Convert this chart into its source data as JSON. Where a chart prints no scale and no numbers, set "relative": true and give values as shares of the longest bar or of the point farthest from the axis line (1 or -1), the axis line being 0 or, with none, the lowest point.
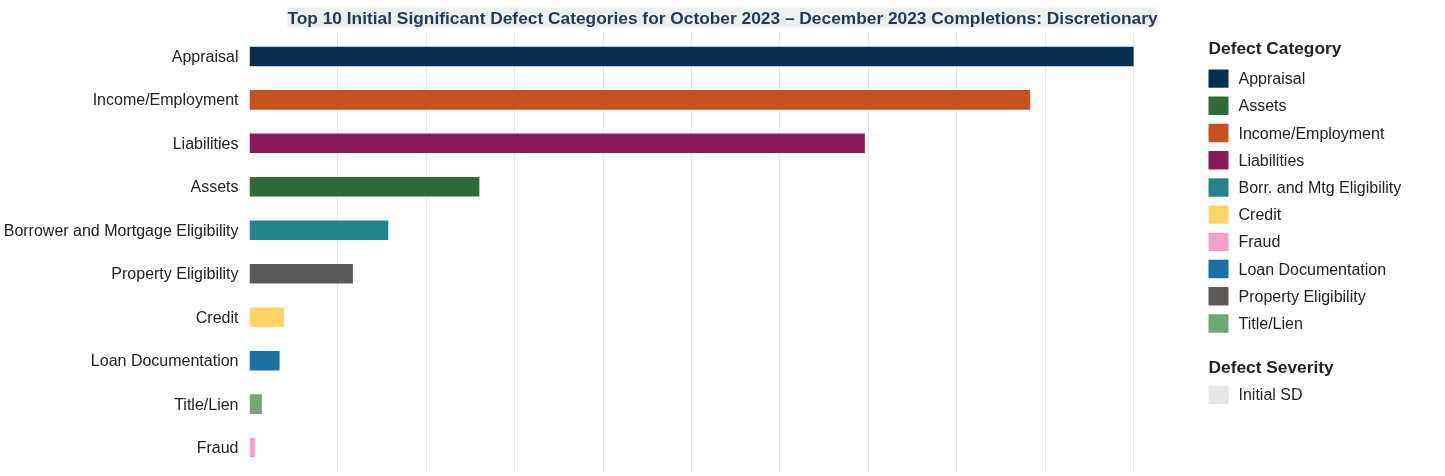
{
  "chart_data": {
    "type": "bar",
    "orientation": "horizontal",
    "relative": true,
    "title": "Top 10 Initial Significant Defect Categories for October 2023 – December 2023 Completions: Discretionary",
    "categories": [
      "Appraisal",
      "Income/Employment",
      "Liabilities",
      "Assets",
      "Borrower and Mortgage Eligibility",
      "Property Eligibility",
      "Credit",
      "Loan Documentation",
      "Title/Lien",
      "Fraud"
    ],
    "legend_title": "Defect Category",
    "legend": "right",
    "grid": "x",
    "series": [
      {
        "name": "Appraisal",
        "color": "#06304f",
        "values": [
          1,
          null,
          null,
          null,
          null,
          null,
          null,
          null,
          null,
          null
        ]
      },
      {
        "name": "Assets",
        "color": "#2e6b37",
        "values": [
          null,
          null,
          null,
          0.26,
          null,
          null,
          null,
          null,
          null,
          null
        ]
      },
      {
        "name": "Income/Employment",
        "color": "#c6521f",
        "values": [
          null,
          0.883,
          null,
          null,
          null,
          null,
          null,
          null,
          null,
          null
        ]
      },
      {
        "name": "Liabilities",
        "color": "#8b1a57",
        "values": [
          null,
          null,
          0.696,
          null,
          null,
          null,
          null,
          null,
          null,
          null
        ]
      },
      {
        "name": "Borr. and Mtg Eligibility",
        "color": "#24838f",
        "values": [
          null,
          null,
          null,
          null,
          0.157,
          null,
          null,
          null,
          null,
          null
        ]
      },
      {
        "name": "Credit",
        "color": "#fdd465",
        "values": [
          null,
          null,
          null,
          null,
          null,
          null,
          0.039,
          null,
          null,
          null
        ]
      },
      {
        "name": "Fraud",
        "color": "#f2a0c9",
        "values": [
          null,
          null,
          null,
          null,
          null,
          null,
          null,
          null,
          null,
          0.006
        ]
      },
      {
        "name": "Loan Documentation",
        "color": "#1f6fa7",
        "values": [
          null,
          null,
          null,
          null,
          null,
          null,
          null,
          0.034,
          null,
          null
        ]
      },
      {
        "name": "Property Eligibility",
        "color": "#5e5a57",
        "values": [
          null,
          null,
          null,
          null,
          null,
          0.117,
          null,
          null,
          null,
          null
        ]
      },
      {
        "name": "Title/Lien",
        "color": "#6fa876",
        "values": [
          null,
          null,
          null,
          null,
          null,
          null,
          null,
          null,
          0.014,
          null
        ]
      },
      {
        "name": "Initial SD",
        "color": "#e6e6e6",
        "values": [
          null,
          null,
          null,
          null,
          null,
          null,
          null,
          null,
          null,
          null
        ]
      }
    ],
    "annotations": [
      "Defect Severity"
    ]
  }
}
